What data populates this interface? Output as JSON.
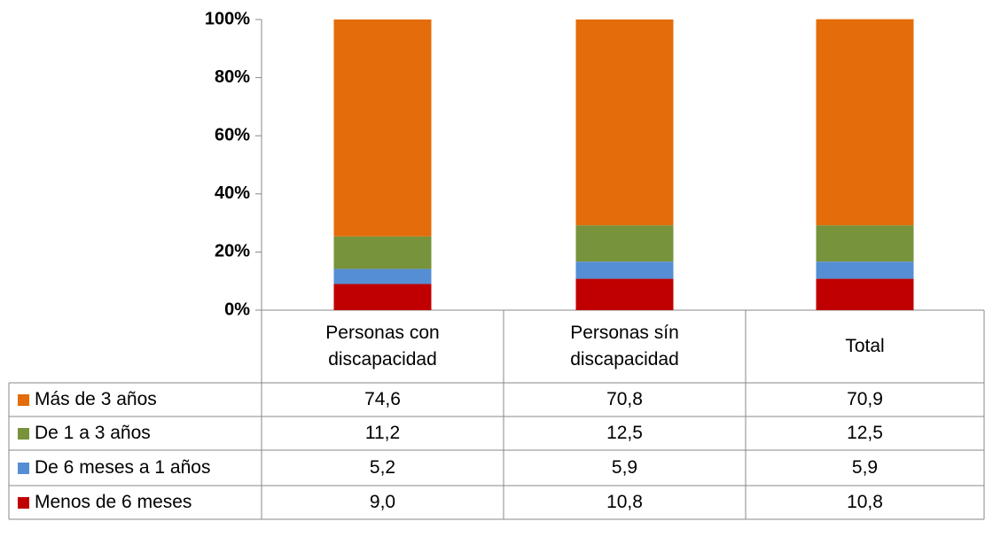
{
  "chart_data": {
    "type": "stacked_bar",
    "categories": [
      "Personas con discapacidad",
      "Personas sín discapacidad",
      "Total"
    ],
    "series": [
      {
        "name": "Más de 3 años",
        "color": "#e46c0a",
        "values": [
          74.6,
          70.8,
          70.9
        ],
        "value_labels": [
          "74,6",
          "70,8",
          "70,9"
        ]
      },
      {
        "name": "De 1 a 3 años",
        "color": "#77933c",
        "values": [
          11.2,
          12.5,
          12.5
        ],
        "value_labels": [
          "11,2",
          "12,5",
          "12,5"
        ]
      },
      {
        "name": "De 6 meses a 1 años",
        "color": "#558ed5",
        "values": [
          5.2,
          5.9,
          5.9
        ],
        "value_labels": [
          "5,2",
          "5,9",
          "5,9"
        ]
      },
      {
        "name": "Menos de 6 meses",
        "color": "#c00000",
        "values": [
          9.0,
          10.8,
          10.8
        ],
        "value_labels": [
          "9,0",
          "10,8",
          "10,8"
        ]
      }
    ],
    "ylim": [
      0,
      100
    ],
    "yticks": [
      {
        "value": 0,
        "label": "0%"
      },
      {
        "value": 20,
        "label": "20%"
      },
      {
        "value": 40,
        "label": "40%"
      },
      {
        "value": 60,
        "label": "60%"
      },
      {
        "value": 80,
        "label": "80%"
      },
      {
        "value": 100,
        "label": "100%"
      }
    ]
  }
}
